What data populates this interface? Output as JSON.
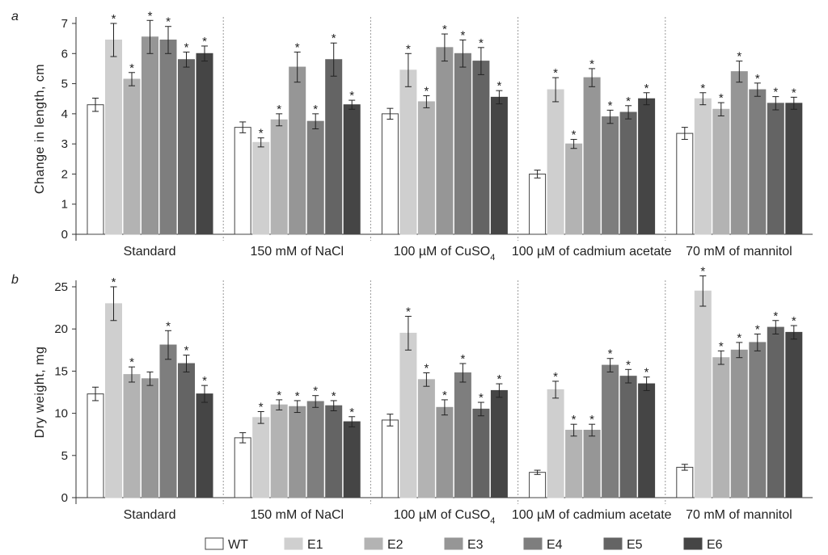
{
  "series_colors": [
    "#ffffff",
    "#cfcfcf",
    "#b3b3b3",
    "#969696",
    "#7e7e7e",
    "#646464",
    "#454545"
  ],
  "legend": [
    "WT",
    "E1",
    "E2",
    "E3",
    "E4",
    "E5",
    "E6"
  ],
  "chart_data": [
    {
      "type": "bar",
      "panel_label": "a",
      "ylabel": "Change in length, cm",
      "ylim": [
        0,
        7
      ],
      "yticks": [
        "0",
        "1",
        "2",
        "3",
        "4",
        "5",
        "6",
        "7"
      ],
      "grid": false,
      "categories": [
        "Standard",
        "150 mM of NaCl",
        "100 µM of CuSO",
        "100 µM of cadmium acetate",
        "70 mM of mannitol"
      ],
      "category_subscripts": [
        "",
        "",
        "4",
        "",
        ""
      ],
      "series": [
        {
          "name": "WT",
          "values": [
            4.3,
            3.55,
            4.0,
            2.0,
            3.35
          ],
          "errors": [
            0.22,
            0.18,
            0.18,
            0.13,
            0.2
          ],
          "significant": [
            false,
            false,
            false,
            false,
            false
          ]
        },
        {
          "name": "E1",
          "values": [
            6.45,
            3.05,
            5.45,
            4.8,
            4.5
          ],
          "errors": [
            0.55,
            0.15,
            0.55,
            0.4,
            0.2
          ],
          "significant": [
            true,
            true,
            true,
            true,
            true
          ]
        },
        {
          "name": "E2",
          "values": [
            5.15,
            3.8,
            4.4,
            3.0,
            4.15
          ],
          "errors": [
            0.22,
            0.2,
            0.2,
            0.15,
            0.22
          ],
          "significant": [
            true,
            true,
            true,
            true,
            true
          ]
        },
        {
          "name": "E3",
          "values": [
            6.55,
            5.55,
            6.2,
            5.2,
            5.4
          ],
          "errors": [
            0.55,
            0.5,
            0.45,
            0.3,
            0.35
          ],
          "significant": [
            true,
            true,
            true,
            true,
            true
          ]
        },
        {
          "name": "E4",
          "values": [
            6.45,
            3.75,
            6.0,
            3.9,
            4.8
          ],
          "errors": [
            0.45,
            0.25,
            0.45,
            0.22,
            0.22
          ],
          "significant": [
            true,
            true,
            true,
            true,
            true
          ]
        },
        {
          "name": "E5",
          "values": [
            5.8,
            5.8,
            5.75,
            4.05,
            4.35
          ],
          "errors": [
            0.25,
            0.55,
            0.45,
            0.22,
            0.22
          ],
          "significant": [
            true,
            true,
            true,
            true,
            true
          ]
        },
        {
          "name": "E6",
          "values": [
            6.0,
            4.3,
            4.55,
            4.5,
            4.35
          ],
          "errors": [
            0.25,
            0.15,
            0.22,
            0.2,
            0.2
          ],
          "significant": [
            true,
            true,
            true,
            true,
            true
          ]
        }
      ]
    },
    {
      "type": "bar",
      "panel_label": "b",
      "ylabel": "Dry weight, mg",
      "ylim": [
        0,
        25
      ],
      "yticks": [
        "0",
        "5",
        "10",
        "15",
        "20",
        "25"
      ],
      "grid": false,
      "categories": [
        "Standard",
        "150 mM of NaCl",
        "100 µM of CuSO",
        "100 µM of cadmium acetate",
        "70 mM of mannitol"
      ],
      "category_subscripts": [
        "",
        "",
        "4",
        "",
        ""
      ],
      "series": [
        {
          "name": "WT",
          "values": [
            12.3,
            7.1,
            9.2,
            3.0,
            3.6
          ],
          "errors": [
            0.8,
            0.6,
            0.7,
            0.25,
            0.35
          ],
          "significant": [
            false,
            false,
            false,
            false,
            false
          ]
        },
        {
          "name": "E1",
          "values": [
            23.0,
            9.5,
            19.5,
            12.8,
            24.5
          ],
          "errors": [
            2.0,
            0.7,
            2.0,
            1.0,
            1.8
          ],
          "significant": [
            true,
            true,
            true,
            true,
            true
          ]
        },
        {
          "name": "E2",
          "values": [
            14.6,
            11.0,
            14.0,
            8.0,
            16.6
          ],
          "errors": [
            0.9,
            0.6,
            0.8,
            0.7,
            0.8
          ],
          "significant": [
            true,
            true,
            true,
            true,
            true
          ]
        },
        {
          "name": "E3",
          "values": [
            14.1,
            10.8,
            10.7,
            8.0,
            17.5
          ],
          "errors": [
            0.8,
            0.7,
            0.9,
            0.7,
            0.9
          ],
          "significant": [
            false,
            true,
            true,
            true,
            true
          ]
        },
        {
          "name": "E4",
          "values": [
            18.1,
            11.4,
            14.8,
            15.7,
            18.4
          ],
          "errors": [
            1.7,
            0.7,
            1.1,
            0.8,
            1.0
          ],
          "significant": [
            true,
            true,
            true,
            true,
            true
          ]
        },
        {
          "name": "E5",
          "values": [
            15.9,
            10.9,
            10.5,
            14.4,
            20.2
          ],
          "errors": [
            1.0,
            0.6,
            0.8,
            0.8,
            0.8
          ],
          "significant": [
            true,
            true,
            true,
            true,
            true
          ]
        },
        {
          "name": "E6",
          "values": [
            12.3,
            9.0,
            12.7,
            13.5,
            19.6
          ],
          "errors": [
            1.0,
            0.6,
            0.8,
            0.8,
            0.8
          ],
          "significant": [
            true,
            true,
            true,
            true,
            true
          ]
        }
      ]
    }
  ]
}
